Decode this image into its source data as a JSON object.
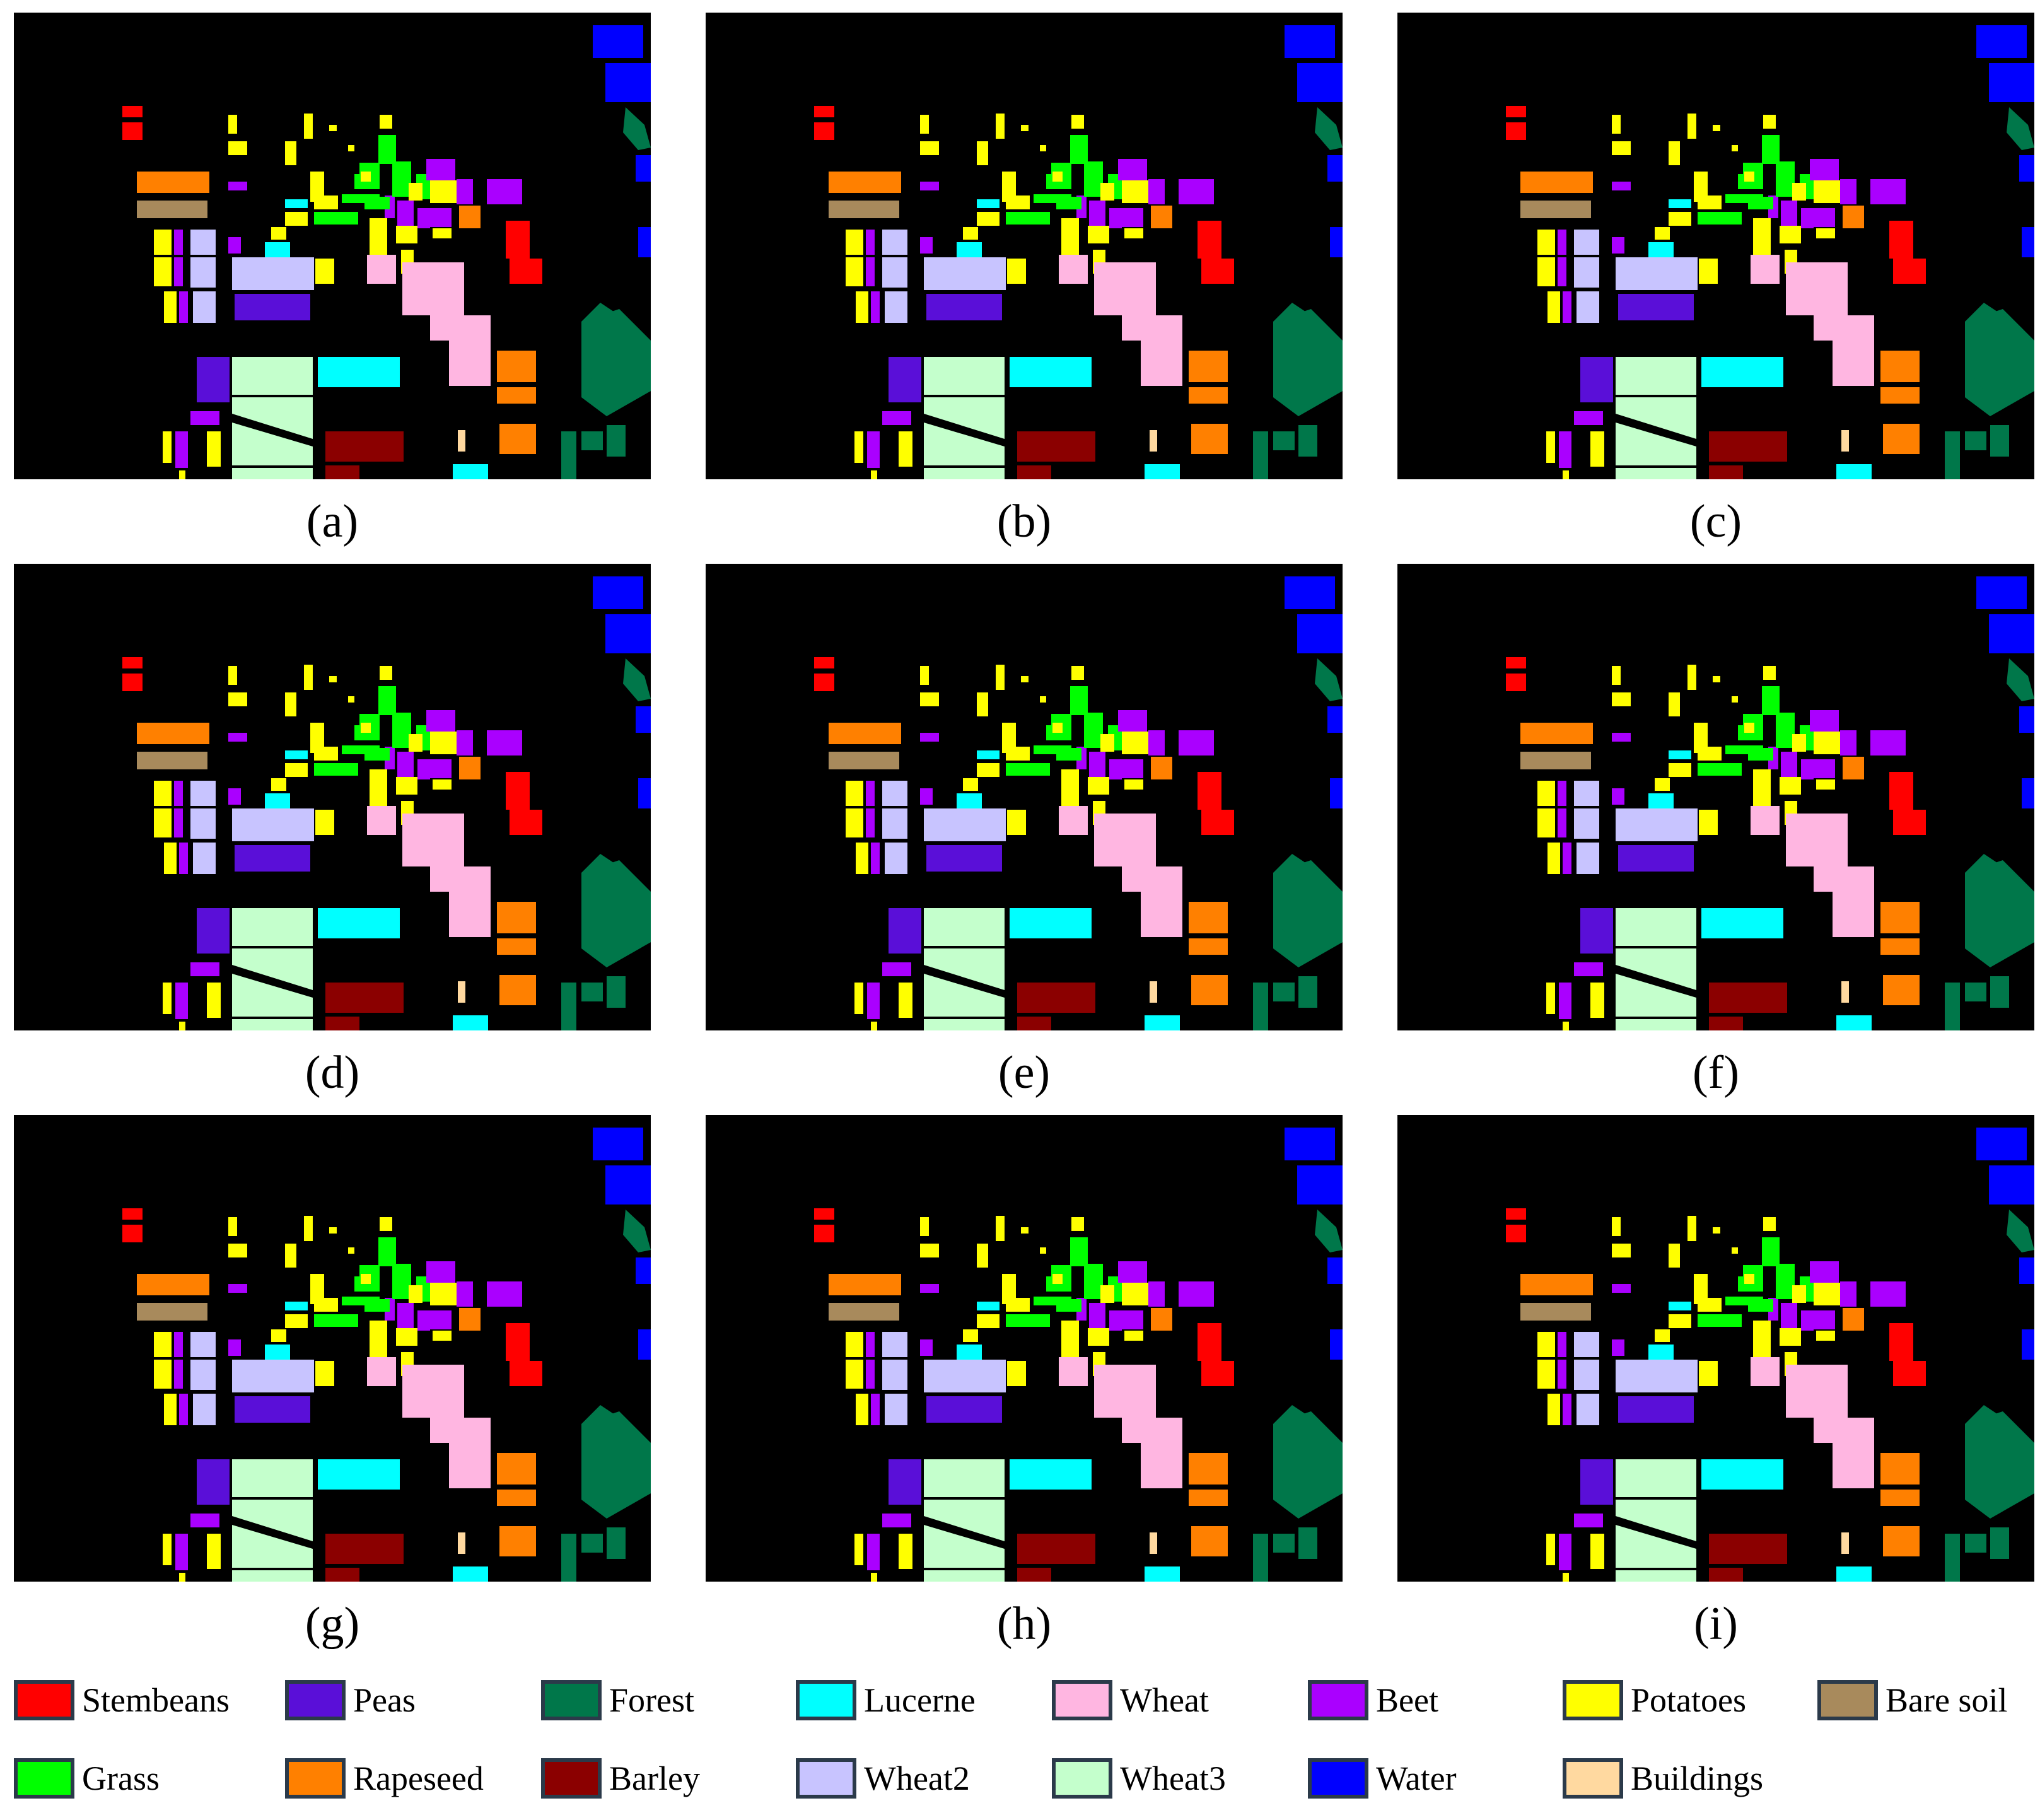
{
  "panels": [
    {
      "id": "a",
      "caption": "(a)"
    },
    {
      "id": "b",
      "caption": "(b)"
    },
    {
      "id": "c",
      "caption": "(c)"
    },
    {
      "id": "d",
      "caption": "(d)"
    },
    {
      "id": "e",
      "caption": "(e)"
    },
    {
      "id": "f",
      "caption": "(f)"
    },
    {
      "id": "g",
      "caption": "(g)"
    },
    {
      "id": "h",
      "caption": "(h)"
    },
    {
      "id": "i",
      "caption": "(i)"
    }
  ],
  "legend": [
    {
      "label": "Stembeans",
      "color": "#ff0000"
    },
    {
      "label": "Peas",
      "color": "#5a0fd8"
    },
    {
      "label": "Forest",
      "color": "#00774a"
    },
    {
      "label": "Lucerne",
      "color": "#00ffff"
    },
    {
      "label": "Wheat",
      "color": "#ffb6e1"
    },
    {
      "label": "Beet",
      "color": "#aa00ff"
    },
    {
      "label": "Potatoes",
      "color": "#ffff00"
    },
    {
      "label": "Bare soil",
      "color": "#a88a5c"
    },
    {
      "label": "Grass",
      "color": "#00ff00"
    },
    {
      "label": "Rapeseed",
      "color": "#ff8000"
    },
    {
      "label": "Barley",
      "color": "#8b0000"
    },
    {
      "label": "Wheat2",
      "color": "#c8c4ff"
    },
    {
      "label": "Wheat3",
      "color": "#c4ffcc"
    },
    {
      "label": "Water",
      "color": "#0000ff"
    },
    {
      "label": "Buildings",
      "color": "#ffd9a0"
    }
  ]
}
